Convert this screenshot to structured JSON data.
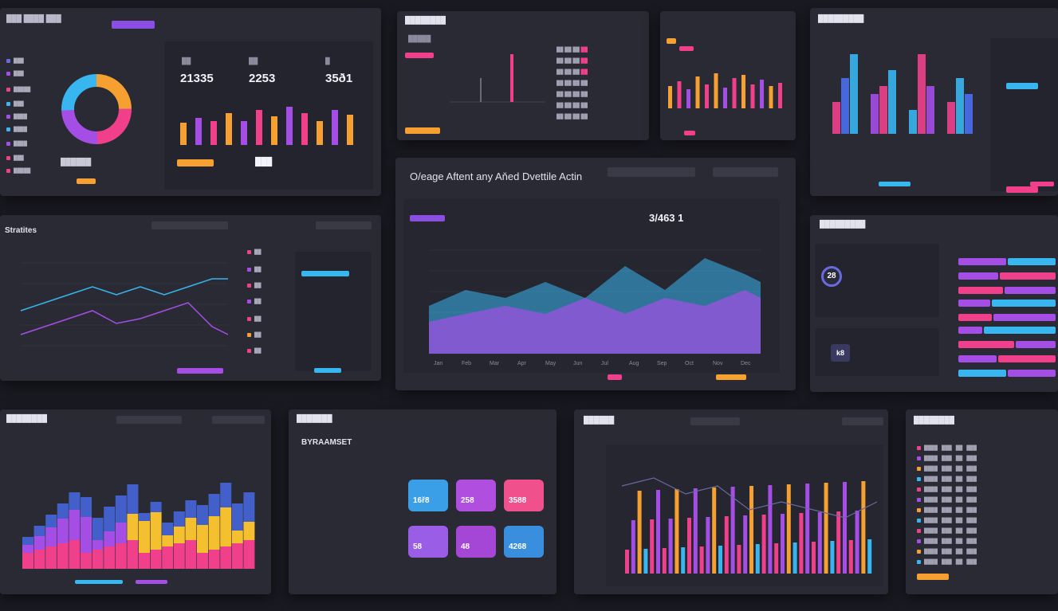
{
  "center": {
    "title": "O/eage Aftent any Aňed Dvettile Actin",
    "metric": "3/463 1",
    "x_ticks": [
      "Jan",
      "Feb",
      "Mar",
      "Apr",
      "May",
      "Jun",
      "Jul",
      "Aug",
      "Sep",
      "Oct",
      "Nov",
      "Dec"
    ]
  },
  "top_left": {
    "metrics": [
      "21335",
      "2253",
      "35ð1"
    ]
  },
  "left_mid": {
    "title": "Stratites"
  },
  "bottom_mid": {
    "title": "BYRAAMSET",
    "cards": [
      {
        "value": "16ř8",
        "color": "#3a9fe6"
      },
      {
        "value": "258",
        "color": "#b04ee0"
      },
      {
        "value": "3588",
        "color": "#f0508c"
      },
      {
        "value": "58",
        "color": "#9a5ee6"
      },
      {
        "value": "48",
        "color": "#a446d6"
      },
      {
        "value": "4268",
        "color": "#3a8ede"
      }
    ]
  },
  "right_mid": {
    "badge": "28",
    "badge2": "k8"
  },
  "colors": {
    "pink": "#f0408c",
    "purple": "#a44ee6",
    "cyan": "#38b6f0",
    "orange": "#f5a030",
    "yellow": "#f5c030",
    "blue": "#4a6ef0"
  }
}
